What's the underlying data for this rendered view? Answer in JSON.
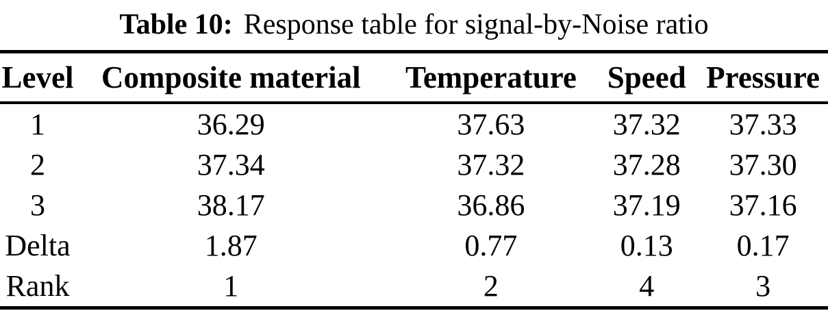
{
  "caption": {
    "label": "Table 10:",
    "text": "Response table for signal-by-Noise ratio"
  },
  "table": {
    "headers": [
      "Level",
      "Composite material",
      "Temperature",
      "Speed",
      "Pressure"
    ],
    "rows": [
      [
        "1",
        "36.29",
        "37.63",
        "37.32",
        "37.33"
      ],
      [
        "2",
        "37.34",
        "37.32",
        "37.28",
        "37.30"
      ],
      [
        "3",
        "38.17",
        "36.86",
        "37.19",
        "37.16"
      ],
      [
        "Delta",
        "1.87",
        "0.77",
        "0.13",
        "0.17"
      ],
      [
        "Rank",
        "1",
        "2",
        "4",
        "3"
      ]
    ]
  },
  "colors": {
    "text": "#000000",
    "background": "#ffffff",
    "rule": "#000000"
  }
}
